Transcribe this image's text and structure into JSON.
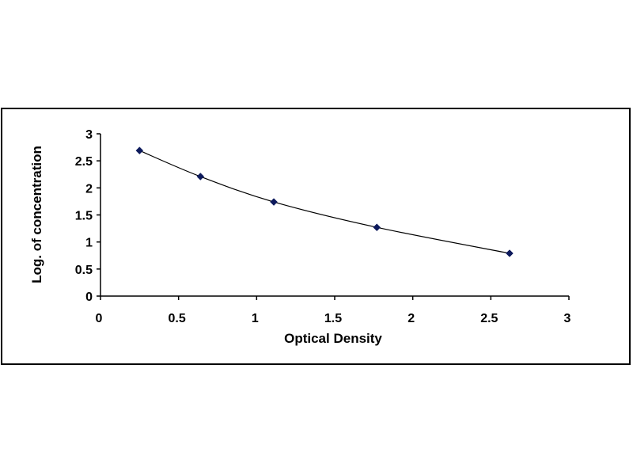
{
  "chart_data": {
    "type": "scatter",
    "title": "",
    "xlabel": "Optical Density",
    "ylabel": "Log. of concentration",
    "xlim": [
      0,
      3
    ],
    "ylim": [
      0,
      3
    ],
    "x_ticks": [
      "0",
      "0.5",
      "1",
      "1.5",
      "2",
      "2.5",
      "3"
    ],
    "y_ticks": [
      "0",
      "0.5",
      "1",
      "1.5",
      "2",
      "2.5",
      "3"
    ],
    "grid": false,
    "legend": "none",
    "series": [
      {
        "x": [
          0.25,
          0.64,
          1.11,
          1.77,
          2.62
        ],
        "y": [
          2.69,
          2.21,
          1.74,
          1.27,
          0.79
        ],
        "marker": "diamond",
        "line": "smooth",
        "color": "#0d1a5c"
      }
    ]
  }
}
